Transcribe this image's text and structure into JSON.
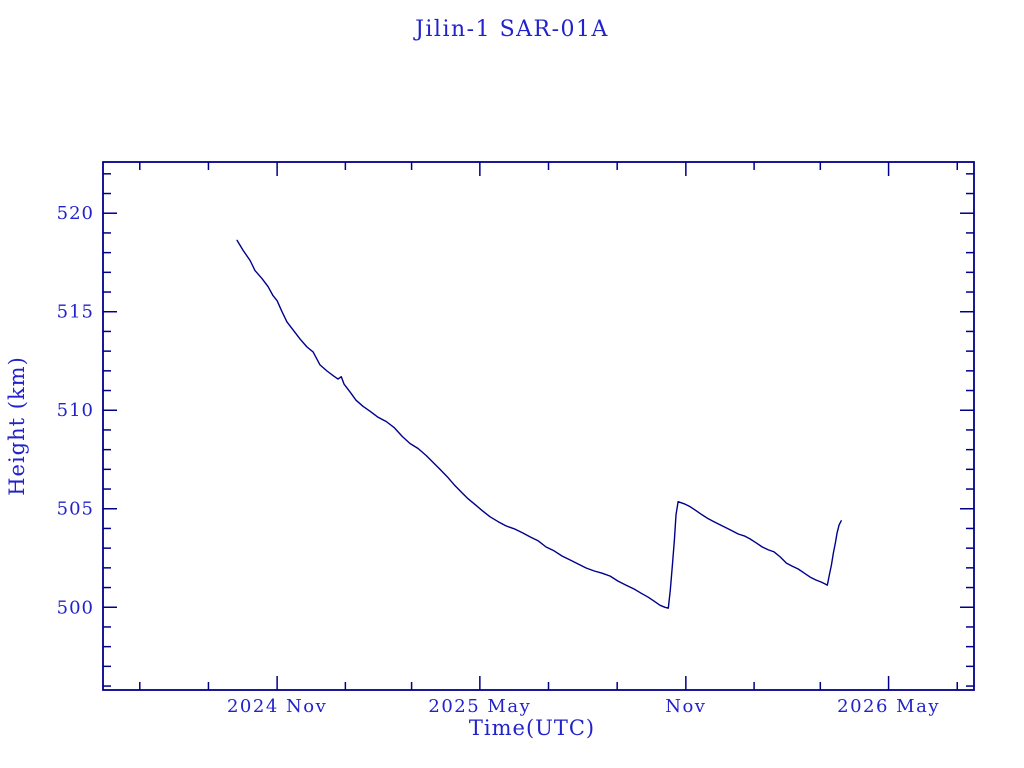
{
  "chart_data": {
    "type": "line",
    "title": "Jilin-1 SAR-01A",
    "xlabel": "Time(UTC)",
    "ylabel": "Height (km)",
    "x_unit": "decimal_year",
    "xlim": [
      2024.407,
      2026.538
    ],
    "ylim": [
      495.8,
      522.6
    ],
    "grid": false,
    "legend": null,
    "colors": {
      "line": "#00008B",
      "axis": "#00008B",
      "text": "#2222CC",
      "background": "#FFFFFF"
    },
    "x_ticks_major": [
      {
        "value": 2024.833,
        "label": "2024 Nov"
      },
      {
        "value": 2025.329,
        "label": "2025 May"
      },
      {
        "value": 2025.833,
        "label": "Nov"
      },
      {
        "value": 2026.329,
        "label": "2026 May"
      }
    ],
    "x_ticks_minor": [
      2024.497,
      2024.665,
      2025.0,
      2025.162,
      2025.497,
      2025.665,
      2026.0,
      2026.162,
      2026.497
    ],
    "y_ticks_major": [
      500,
      505,
      510,
      515,
      520
    ],
    "y_tick_minor_step": 1,
    "series": [
      {
        "name": "height",
        "points": [
          [
            2024.735,
            518.62
          ],
          [
            2024.75,
            518.11
          ],
          [
            2024.767,
            517.6
          ],
          [
            2024.779,
            517.09
          ],
          [
            2024.796,
            516.68
          ],
          [
            2024.811,
            516.27
          ],
          [
            2024.823,
            515.82
          ],
          [
            2024.833,
            515.56
          ],
          [
            2024.845,
            515.0
          ],
          [
            2024.857,
            514.49
          ],
          [
            2024.872,
            514.08
          ],
          [
            2024.889,
            513.62
          ],
          [
            2024.906,
            513.21
          ],
          [
            2024.921,
            512.96
          ],
          [
            2024.938,
            512.3
          ],
          [
            2024.955,
            511.99
          ],
          [
            2024.972,
            511.73
          ],
          [
            2024.982,
            511.58
          ],
          [
            2024.99,
            511.7
          ],
          [
            2024.997,
            511.32
          ],
          [
            2025.012,
            510.91
          ],
          [
            2025.026,
            510.51
          ],
          [
            2025.043,
            510.2
          ],
          [
            2025.061,
            509.94
          ],
          [
            2025.08,
            509.64
          ],
          [
            2025.1,
            509.43
          ],
          [
            2025.119,
            509.13
          ],
          [
            2025.139,
            508.67
          ],
          [
            2025.158,
            508.31
          ],
          [
            2025.178,
            508.06
          ],
          [
            2025.198,
            507.7
          ],
          [
            2025.215,
            507.34
          ],
          [
            2025.232,
            506.99
          ],
          [
            2025.249,
            506.63
          ],
          [
            2025.266,
            506.22
          ],
          [
            2025.283,
            505.86
          ],
          [
            2025.3,
            505.51
          ],
          [
            2025.318,
            505.2
          ],
          [
            2025.335,
            504.9
          ],
          [
            2025.354,
            504.59
          ],
          [
            2025.374,
            504.34
          ],
          [
            2025.393,
            504.13
          ],
          [
            2025.413,
            503.98
          ],
          [
            2025.433,
            503.78
          ],
          [
            2025.452,
            503.57
          ],
          [
            2025.472,
            503.37
          ],
          [
            2025.491,
            503.06
          ],
          [
            2025.511,
            502.86
          ],
          [
            2025.53,
            502.6
          ],
          [
            2025.55,
            502.4
          ],
          [
            2025.57,
            502.19
          ],
          [
            2025.589,
            501.99
          ],
          [
            2025.609,
            501.84
          ],
          [
            2025.628,
            501.73
          ],
          [
            2025.648,
            501.58
          ],
          [
            2025.667,
            501.33
          ],
          [
            2025.687,
            501.12
          ],
          [
            2025.707,
            500.92
          ],
          [
            2025.724,
            500.71
          ],
          [
            2025.741,
            500.51
          ],
          [
            2025.755,
            500.31
          ],
          [
            2025.77,
            500.1
          ],
          [
            2025.782,
            500.0
          ],
          [
            2025.79,
            499.95
          ],
          [
            2025.795,
            500.87
          ],
          [
            2025.8,
            502.14
          ],
          [
            2025.805,
            503.42
          ],
          [
            2025.809,
            504.69
          ],
          [
            2025.814,
            505.36
          ],
          [
            2025.829,
            505.25
          ],
          [
            2025.844,
            505.1
          ],
          [
            2025.858,
            504.9
          ],
          [
            2025.873,
            504.69
          ],
          [
            2025.888,
            504.49
          ],
          [
            2025.902,
            504.34
          ],
          [
            2025.917,
            504.18
          ],
          [
            2025.932,
            504.03
          ],
          [
            2025.946,
            503.88
          ],
          [
            2025.961,
            503.72
          ],
          [
            2025.976,
            503.62
          ],
          [
            2025.99,
            503.47
          ],
          [
            2026.005,
            503.27
          ],
          [
            2026.02,
            503.06
          ],
          [
            2026.035,
            502.91
          ],
          [
            2026.049,
            502.81
          ],
          [
            2026.064,
            502.55
          ],
          [
            2026.079,
            502.24
          ],
          [
            2026.093,
            502.09
          ],
          [
            2026.108,
            501.94
          ],
          [
            2026.123,
            501.73
          ],
          [
            2026.137,
            501.53
          ],
          [
            2026.152,
            501.38
          ],
          [
            2026.164,
            501.28
          ],
          [
            2026.174,
            501.18
          ],
          [
            2026.179,
            501.12
          ],
          [
            2026.184,
            501.63
          ],
          [
            2026.189,
            502.14
          ],
          [
            2026.194,
            502.76
          ],
          [
            2026.199,
            503.27
          ],
          [
            2026.203,
            503.78
          ],
          [
            2026.208,
            504.18
          ],
          [
            2026.213,
            504.39
          ]
        ]
      }
    ]
  }
}
